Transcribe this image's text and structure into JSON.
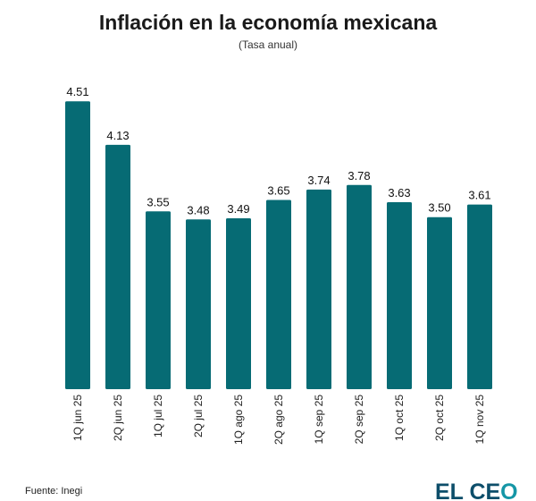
{
  "chart_data": {
    "type": "bar",
    "title": "Inflación en la economía mexicana",
    "subtitle": "(Tasa anual)",
    "categories": [
      "1Q jun 25",
      "2Q jun 25",
      "1Q jul 25",
      "2Q jul 25",
      "1Q ago 25",
      "2Q ago 25",
      "1Q sep 25",
      "2Q sep 25",
      "1Q oct 25",
      "2Q oct 25",
      "1Q nov 25"
    ],
    "values": [
      4.51,
      4.13,
      3.55,
      3.48,
      3.49,
      3.65,
      3.74,
      3.78,
      3.63,
      3.5,
      3.61
    ],
    "data_labels": [
      "4.51",
      "4.13",
      "3.55",
      "3.48",
      "3.49",
      "3.65",
      "3.74",
      "3.78",
      "3.63",
      "3.50",
      "3.61"
    ],
    "ylim": [
      2.0,
      4.6
    ],
    "grid": false,
    "bar_color": "#066b74"
  },
  "footer": {
    "source": "Fuente: Inegi",
    "logo": "EL CEO"
  }
}
